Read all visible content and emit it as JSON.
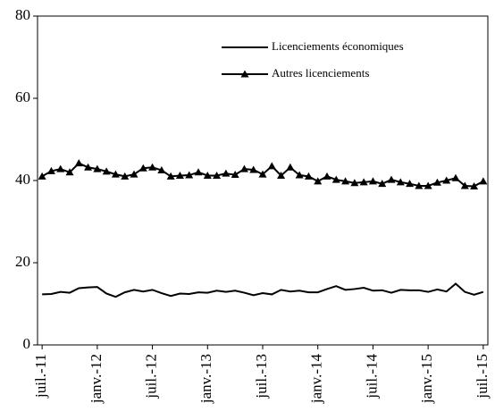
{
  "chart_data": {
    "type": "line",
    "categories": [
      "juil.-11",
      null,
      null,
      null,
      null,
      null,
      "janv.-12",
      null,
      null,
      null,
      null,
      null,
      "juil.-12",
      null,
      null,
      null,
      null,
      null,
      "janv.-13",
      null,
      null,
      null,
      null,
      null,
      "juil.-13",
      null,
      null,
      null,
      null,
      null,
      "janv.-14",
      null,
      null,
      null,
      null,
      null,
      "juil.-14",
      null,
      null,
      null,
      null,
      null,
      "janv.-15",
      null,
      null,
      null,
      null,
      null,
      "juil.-15"
    ],
    "series": [
      {
        "name": "Licenciements économiques",
        "color": "#000000",
        "marker": "none",
        "values": [
          12.3,
          12.4,
          12.9,
          12.7,
          13.8,
          14,
          14.1,
          12.5,
          11.7,
          12.8,
          13.4,
          13,
          13.4,
          12.6,
          11.9,
          12.5,
          12.4,
          12.8,
          12.7,
          13.2,
          12.9,
          13.2,
          12.7,
          12.1,
          12.6,
          12.3,
          13.4,
          13,
          13.2,
          12.8,
          12.8,
          13.6,
          14.3,
          13.4,
          13.6,
          13.9,
          13.2,
          13.3,
          12.7,
          13.4,
          13.3,
          13.3,
          12.9,
          13.5,
          13,
          14.9,
          12.9,
          12.2,
          12.9
        ]
      },
      {
        "name": "Autres licenciements",
        "color": "#000000",
        "marker": "triangle",
        "values": [
          41,
          42.3,
          42.8,
          42,
          44.2,
          43.2,
          42.8,
          42.2,
          41.5,
          41,
          41.5,
          43,
          43.2,
          42.5,
          41,
          41.2,
          41.3,
          42,
          41.2,
          41.2,
          41.7,
          41.4,
          42.8,
          42.6,
          41.5,
          43.5,
          41.2,
          43.2,
          41.3,
          41,
          39.8,
          41,
          40.2,
          39.8,
          39.4,
          39.6,
          39.8,
          39.2,
          40.2,
          39.6,
          39.2,
          38.7,
          38.7,
          39.5,
          40,
          40.6,
          38.7,
          38.6,
          39.8
        ]
      }
    ],
    "ylim": [
      0,
      80
    ],
    "yticks": [
      0,
      20,
      40,
      60,
      80
    ],
    "grid": false,
    "legend": "upper right"
  }
}
